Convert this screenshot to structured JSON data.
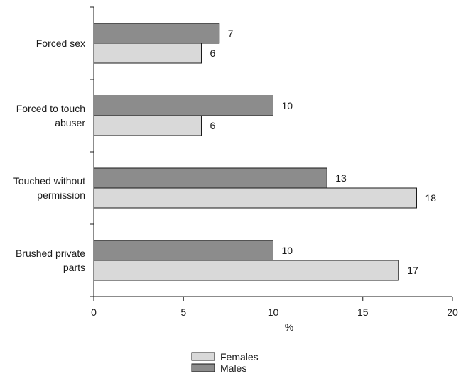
{
  "chart_data": {
    "type": "bar",
    "orientation": "horizontal",
    "categories": [
      [
        "Forced sex"
      ],
      [
        "Forced to touch",
        "abuser"
      ],
      [
        "Touched without",
        "permission"
      ],
      [
        "Brushed private",
        "parts"
      ]
    ],
    "series": [
      {
        "name": "Males",
        "color": "#8c8c8c",
        "values": [
          7,
          10,
          13,
          10
        ]
      },
      {
        "name": "Females",
        "color": "#d9d9d9",
        "values": [
          6,
          6,
          18,
          17
        ]
      }
    ],
    "xlabel": "%",
    "ylabel": "",
    "title": "",
    "xlim": [
      0,
      20
    ],
    "xticks": [
      0,
      5,
      10,
      15,
      20
    ],
    "grid": false,
    "legend_position": "bottom-center",
    "legend": [
      "Females",
      "Males"
    ]
  }
}
